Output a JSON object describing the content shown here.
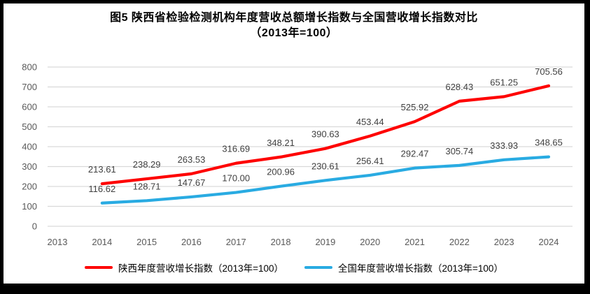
{
  "figure": {
    "title_line1": "图5  陕西省检验检测机构年度营收总额增长指数与全国营收增长指数对比",
    "title_line2": "（2013年=100）"
  },
  "chart_data": {
    "type": "line",
    "title": "图5 陕西省检验检测机构年度营收总额增长指数与全国营收增长指数对比",
    "subtitle": "（2013年=100）",
    "categories": [
      "2013",
      "2014",
      "2015",
      "2016",
      "2017",
      "2018",
      "2019",
      "2020",
      "2021",
      "2022",
      "2023",
      "2024"
    ],
    "series": [
      {
        "name": "陕西年度营收增长指数（2013年=100）",
        "color": "#FE0000",
        "values": [
          null,
          213.61,
          238.29,
          263.53,
          316.69,
          348.21,
          390.63,
          453.44,
          525.92,
          628.43,
          651.25,
          705.56
        ]
      },
      {
        "name": "全国年度营收增长指数（2013年=100）",
        "color": "#29ABE2",
        "values": [
          null,
          116.62,
          128.71,
          147.67,
          170.0,
          200.96,
          230.61,
          256.41,
          292.47,
          305.74,
          333.93,
          348.65
        ]
      }
    ],
    "ylim": [
      0,
      800
    ],
    "ytick_step": 100,
    "y_tick_labels": [
      "0",
      "100",
      "200",
      "300",
      "400",
      "500",
      "600",
      "700",
      "800"
    ],
    "grid": true,
    "data_labels": true,
    "data_label_decimals": 2,
    "legend_position": "bottom",
    "palette": {
      "gridline": "#D9D9D9",
      "axis_text": "#595959",
      "data_label_text": "#3F3F3F",
      "title_text": "#000000",
      "frame_border": "#000000",
      "background": "#FFFFFF"
    }
  }
}
